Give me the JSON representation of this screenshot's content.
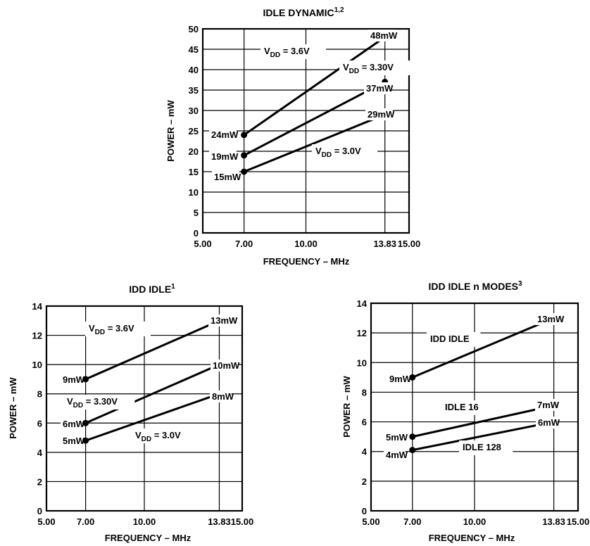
{
  "chart_data": [
    {
      "type": "line",
      "title": "IDLE DYNAMIC",
      "title_sup": "1,2",
      "xlabel": "FREQUENCY – MHz",
      "ylabel": "POWER – mW",
      "x_ticks": [
        "5.00",
        "7.00",
        "10.00",
        "13.83",
        "15.00"
      ],
      "y_ticks": [
        0,
        5,
        10,
        15,
        20,
        25,
        30,
        35,
        40,
        45,
        50
      ],
      "ylim": [
        0,
        50
      ],
      "grid": true,
      "series": [
        {
          "name": "VDD = 3.6V",
          "name_main": "V",
          "name_sub": "DD",
          "name_rest": " = 3.6V",
          "x": [
            "7.00",
            "13.83"
          ],
          "values": [
            24,
            48
          ],
          "point_labels": [
            "24mW",
            "48mW"
          ]
        },
        {
          "name": "VDD = 3.30V",
          "name_main": "V",
          "name_sub": "DD",
          "name_rest": " = 3.30V",
          "x": [
            "7.00",
            "13.83"
          ],
          "values": [
            19,
            37
          ],
          "point_labels": [
            "19mW",
            "37mW"
          ]
        },
        {
          "name": "VDD = 3.0V",
          "name_main": "V",
          "name_sub": "DD",
          "name_rest": " = 3.0V",
          "x": [
            "7.00",
            "13.83"
          ],
          "values": [
            15,
            29
          ],
          "point_labels": [
            "15mW",
            "29mW"
          ]
        }
      ]
    },
    {
      "type": "line",
      "title": "IDD IDLE",
      "title_sup": "1",
      "xlabel": "FREQUENCY – MHz",
      "ylabel": "POWER – mW",
      "x_ticks": [
        "5.00",
        "7.00",
        "10.00",
        "13.83",
        "15.00"
      ],
      "y_ticks": [
        0,
        2,
        4,
        6,
        8,
        10,
        12,
        14
      ],
      "ylim": [
        0,
        14
      ],
      "grid": true,
      "series": [
        {
          "name": "VDD = 3.6V",
          "name_main": "V",
          "name_sub": "DD",
          "name_rest": " = 3.6V",
          "x": [
            "7.00",
            "13.83"
          ],
          "values": [
            9,
            13
          ],
          "point_labels": [
            "9mW",
            "13mW"
          ]
        },
        {
          "name": "VDD = 3.30V",
          "name_main": "V",
          "name_sub": "DD",
          "name_rest": " = 3.30V",
          "x": [
            "7.00",
            "13.83"
          ],
          "values": [
            6,
            10
          ],
          "point_labels": [
            "6mW",
            "10mW"
          ]
        },
        {
          "name": "VDD = 3.0V",
          "name_main": "V",
          "name_sub": "DD",
          "name_rest": " = 3.0V",
          "x": [
            "7.00",
            "13.83"
          ],
          "values": [
            4.8,
            8
          ],
          "point_labels": [
            "5mW",
            "8mW"
          ]
        }
      ]
    },
    {
      "type": "line",
      "title": "IDD IDLE n MODES",
      "title_sup": "3",
      "xlabel": "FREQUENCY – MHz",
      "ylabel": "POWER – mW",
      "x_ticks": [
        "5.00",
        "7.00",
        "10.00",
        "13.83",
        "15.00"
      ],
      "y_ticks": [
        0,
        2,
        4,
        6,
        8,
        10,
        12,
        14
      ],
      "ylim": [
        0,
        14
      ],
      "grid": true,
      "series": [
        {
          "name": "IDD IDLE",
          "name_main": "IDD IDLE",
          "name_sub": "",
          "name_rest": "",
          "x": [
            "7.00",
            "13.83"
          ],
          "values": [
            9,
            13
          ],
          "point_labels": [
            "9mW",
            "13mW"
          ]
        },
        {
          "name": "IDLE 16",
          "name_main": "IDLE 16",
          "name_sub": "",
          "name_rest": "",
          "x": [
            "7.00",
            "13.83"
          ],
          "values": [
            5,
            7.1
          ],
          "point_labels": [
            "5mW",
            "7mW"
          ]
        },
        {
          "name": "IDLE 128",
          "name_main": "IDLE 128",
          "name_sub": "",
          "name_rest": "",
          "x": [
            "7.00",
            "13.83"
          ],
          "values": [
            4.1,
            6
          ],
          "point_labels": [
            "4mW",
            "6mW"
          ]
        }
      ]
    }
  ]
}
